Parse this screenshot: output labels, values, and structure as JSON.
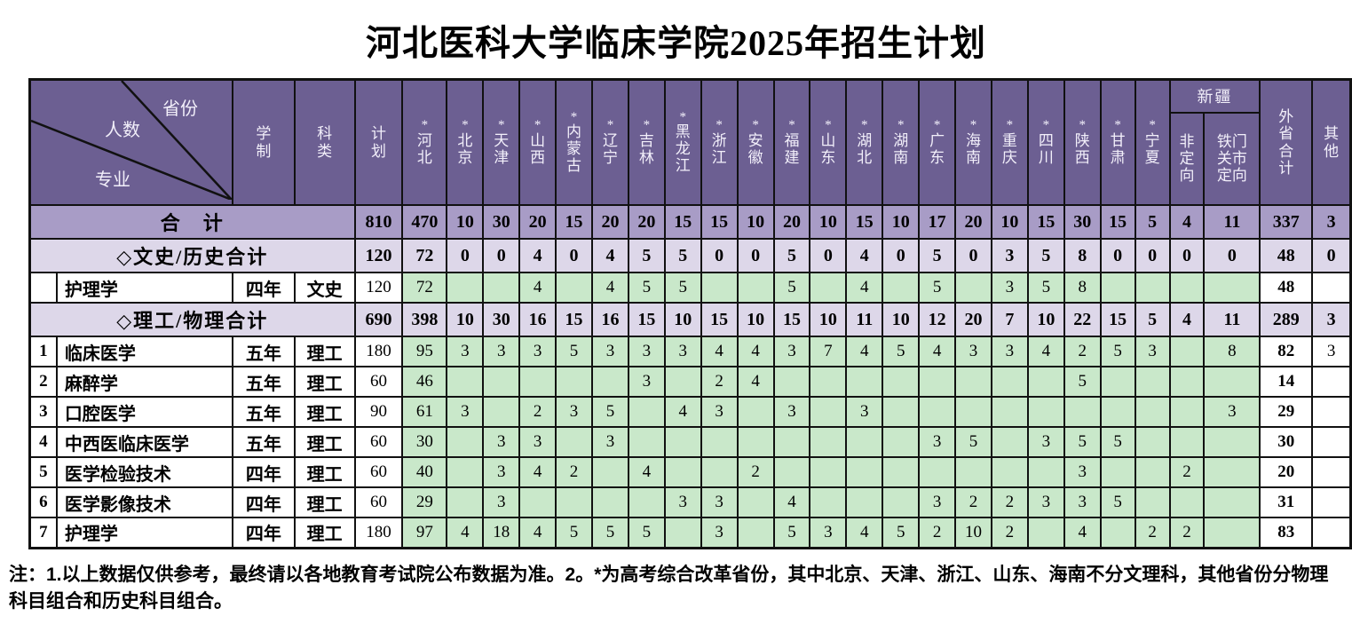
{
  "title": "河北医科大学临床学院2025年招生计划",
  "corner": {
    "axis_top": "省份",
    "axis_middle": "人数",
    "axis_bottom": "专业"
  },
  "header": {
    "reform_mark": "*",
    "years": "学制",
    "category": "科类",
    "plan": "计划",
    "provinces": [
      "河北",
      "北京",
      "天津",
      "山西",
      "内蒙古",
      "辽宁",
      "吉林",
      "黑龙江",
      "浙江",
      "安徽",
      "福建",
      "山东",
      "湖北",
      "湖南",
      "广东",
      "海南",
      "重庆",
      "四川",
      "陕西",
      "甘肃",
      "宁夏"
    ],
    "xinjiang": {
      "group": "新疆",
      "sub": [
        "非定向",
        "铁门关市定向"
      ]
    },
    "out_total": "外省合计",
    "other": "其他"
  },
  "colors": {
    "header_bg": "#6c5f92",
    "total_row_bg": "#a89cc6",
    "subtotal_row_bg": "#ddd7e9",
    "data_cell_bg": "#c9e8ca",
    "border": "#111111"
  },
  "rows": [
    {
      "type": "total",
      "label": "合　计",
      "plan": "810",
      "values": [
        "470",
        "10",
        "30",
        "20",
        "15",
        "20",
        "20",
        "15",
        "15",
        "10",
        "20",
        "10",
        "15",
        "10",
        "17",
        "20",
        "10",
        "15",
        "30",
        "15",
        "5",
        "4",
        "11"
      ],
      "out_total": "337",
      "other": "3"
    },
    {
      "type": "subtotal",
      "label": "◇文史/历史合计",
      "plan": "120",
      "values": [
        "72",
        "0",
        "0",
        "4",
        "0",
        "4",
        "5",
        "5",
        "0",
        "0",
        "5",
        "0",
        "4",
        "0",
        "5",
        "0",
        "3",
        "5",
        "8",
        "0",
        "0",
        "0",
        "0"
      ],
      "out_total": "48",
      "other": "0"
    },
    {
      "type": "data",
      "num": "",
      "name": "护理学",
      "years": "四年",
      "category": "文史",
      "plan": "120",
      "values": [
        "72",
        "",
        "",
        "4",
        "",
        "4",
        "5",
        "5",
        "",
        "",
        "5",
        "",
        "4",
        "",
        "5",
        "",
        "3",
        "5",
        "8",
        "",
        "",
        "",
        ""
      ],
      "out_total": "48",
      "other": ""
    },
    {
      "type": "subtotal",
      "label": "◇理工/物理合计",
      "plan": "690",
      "values": [
        "398",
        "10",
        "30",
        "16",
        "15",
        "16",
        "15",
        "10",
        "15",
        "10",
        "15",
        "10",
        "11",
        "10",
        "12",
        "20",
        "7",
        "10",
        "22",
        "15",
        "5",
        "4",
        "11"
      ],
      "out_total": "289",
      "other": "3"
    },
    {
      "type": "data",
      "num": "1",
      "name": "临床医学",
      "years": "五年",
      "category": "理工",
      "plan": "180",
      "values": [
        "95",
        "3",
        "3",
        "3",
        "5",
        "3",
        "3",
        "3",
        "4",
        "4",
        "3",
        "7",
        "4",
        "5",
        "4",
        "3",
        "3",
        "4",
        "2",
        "5",
        "3",
        "",
        "8"
      ],
      "out_total": "82",
      "other": "3"
    },
    {
      "type": "data",
      "num": "2",
      "name": "麻醉学",
      "years": "五年",
      "category": "理工",
      "plan": "60",
      "values": [
        "46",
        "",
        "",
        "",
        "",
        "",
        "3",
        "",
        "2",
        "4",
        "",
        "",
        "",
        "",
        "",
        "",
        "",
        "",
        "5",
        "",
        "",
        "",
        ""
      ],
      "out_total": "14",
      "other": ""
    },
    {
      "type": "data",
      "num": "3",
      "name": "口腔医学",
      "years": "五年",
      "category": "理工",
      "plan": "90",
      "values": [
        "61",
        "3",
        "",
        "2",
        "3",
        "5",
        "",
        "4",
        "3",
        "",
        "3",
        "",
        "3",
        "",
        "",
        "",
        "",
        "",
        "",
        "",
        "",
        "",
        "3"
      ],
      "out_total": "29",
      "other": ""
    },
    {
      "type": "data",
      "num": "4",
      "name": "中西医临床医学",
      "years": "五年",
      "category": "理工",
      "plan": "60",
      "values": [
        "30",
        "",
        "3",
        "3",
        "",
        "3",
        "",
        "",
        "",
        "",
        "",
        "",
        "",
        "",
        "3",
        "5",
        "",
        "3",
        "5",
        "5",
        "",
        "",
        ""
      ],
      "out_total": "30",
      "other": ""
    },
    {
      "type": "data",
      "num": "5",
      "name": "医学检验技术",
      "years": "四年",
      "category": "理工",
      "plan": "60",
      "values": [
        "40",
        "",
        "3",
        "4",
        "2",
        "",
        "4",
        "",
        "",
        "2",
        "",
        "",
        "",
        "",
        "",
        "",
        "",
        "",
        "3",
        "",
        "",
        "2",
        ""
      ],
      "out_total": "20",
      "other": ""
    },
    {
      "type": "data",
      "num": "6",
      "name": "医学影像技术",
      "years": "四年",
      "category": "理工",
      "plan": "60",
      "values": [
        "29",
        "",
        "3",
        "",
        "",
        "",
        "",
        "3",
        "3",
        "",
        "4",
        "",
        "",
        "",
        "3",
        "2",
        "2",
        "3",
        "3",
        "5",
        "",
        "",
        ""
      ],
      "out_total": "31",
      "other": ""
    },
    {
      "type": "data",
      "num": "7",
      "name": "护理学",
      "years": "四年",
      "category": "理工",
      "plan": "180",
      "values": [
        "97",
        "4",
        "18",
        "4",
        "5",
        "5",
        "5",
        "",
        "3",
        "",
        "5",
        "3",
        "4",
        "5",
        "2",
        "10",
        "2",
        "",
        "4",
        "",
        "2",
        "2",
        ""
      ],
      "out_total": "83",
      "other": ""
    }
  ],
  "note": "注：1.以上数据仅供参考，最终请以各地教育考试院公布数据为准。2。*为高考综合改革省份，其中北京、天津、浙江、山东、海南不分文理科，其他省份分物理科目组合和历史科目组合。"
}
